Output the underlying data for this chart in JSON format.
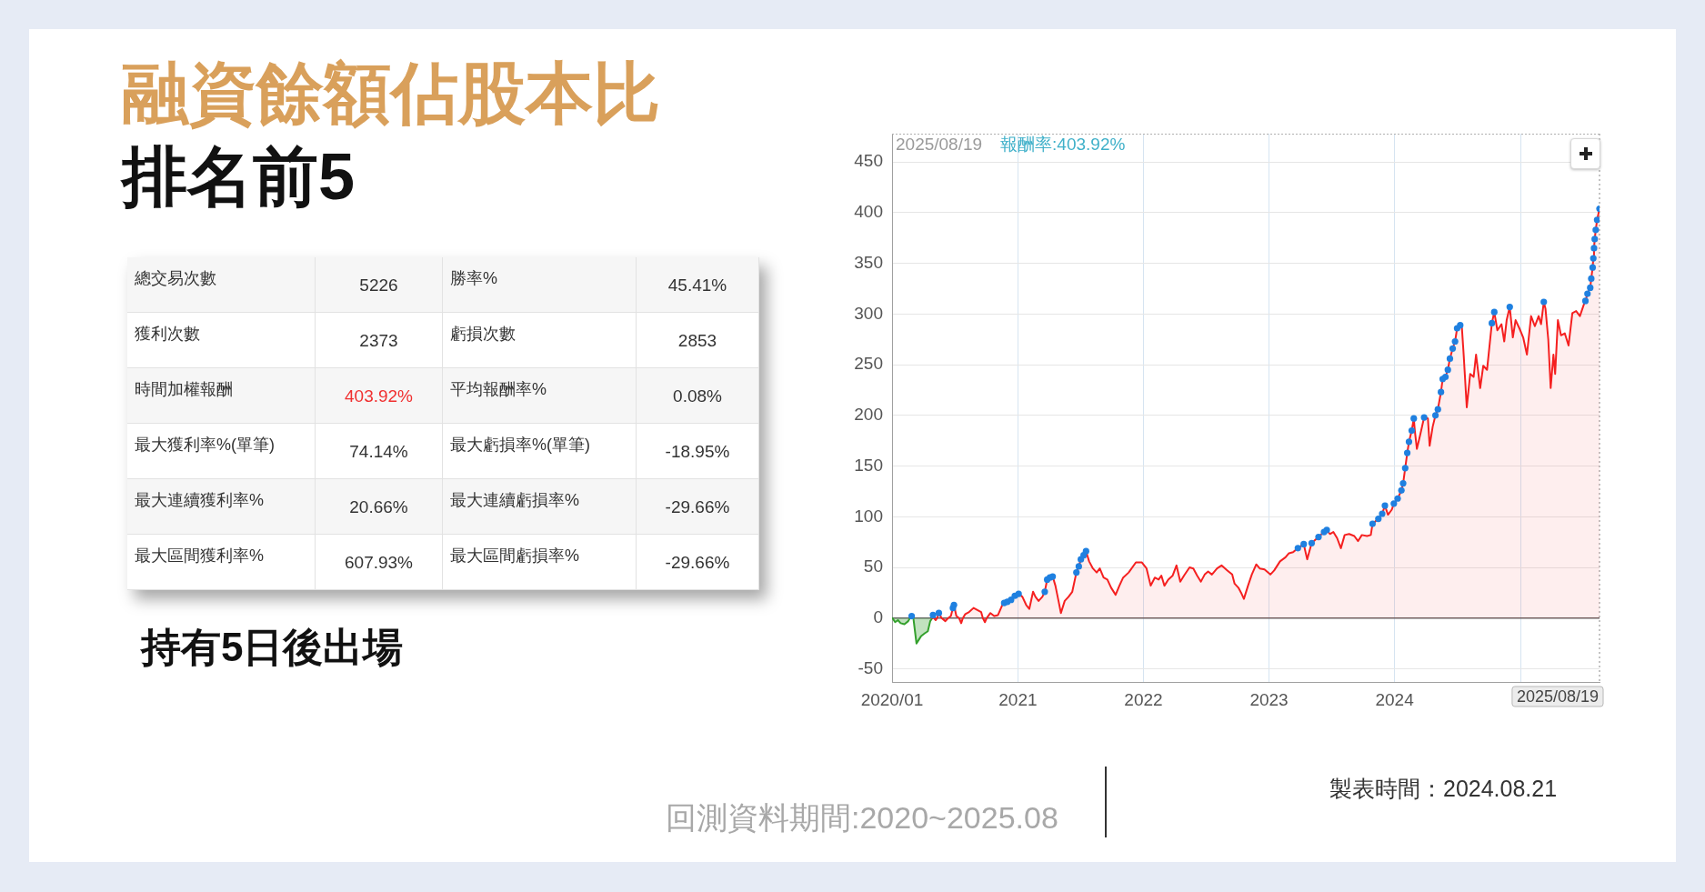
{
  "chart_data": [
    {
      "type": "other",
      "title": "融資餘額佔股本比",
      "subtitle": "排名前5",
      "annotations": [
        "總交易次數",
        "5226",
        "勝率%",
        "45.41%",
        "獲利次數",
        "2373",
        "虧損次數",
        "2853",
        "時間加權報酬",
        "403.92%",
        "平均報酬率%",
        "0.08%",
        "最大獲利率%(單筆)",
        "74.14%",
        "最大虧損率%(單筆)",
        "-18.95%",
        "最大連續獲利率%",
        "20.66%",
        "最大連續虧損率%",
        "-29.66%",
        "最大區間獲利率%",
        "607.93%",
        "最大區間虧損率%",
        "-29.66%",
        "持有5日後出場"
      ]
    },
    {
      "type": "area",
      "xlim": [
        "2020-01-01",
        "2025-08-19"
      ],
      "xticks": [
        {
          "value": "2020-01",
          "label": "2020/01"
        },
        "2021",
        "2022",
        "2023",
        "2024",
        {
          "value": "2025",
          "label": null
        }
      ],
      "ylim": [
        -63,
        478
      ],
      "yticks": [
        -50,
        0,
        50,
        100,
        150,
        200,
        250,
        300,
        350,
        400,
        450
      ],
      "grid": true,
      "legend": false,
      "series": [
        {
          "type": "area",
          "color": "#33a02c",
          "marker": "none",
          "x": [
            "2020-01-02",
            "2020-01-10",
            "2020-01-18",
            "2020-01-26",
            "2020-02-06",
            "2020-02-17",
            "2020-02-22",
            "2020-02-27",
            "2020-03-03",
            "2020-03-12",
            "2020-03-25",
            "2020-04-05",
            "2020-04-14",
            "2020-04-21",
            "2020-04-27"
          ],
          "values": [
            0,
            -4,
            -2,
            -5,
            -6,
            -3,
            0,
            2,
            0,
            -25,
            -18,
            -15,
            -13,
            -3,
            0
          ]
        },
        {
          "type": "area",
          "color": "#f52020",
          "marker": "none",
          "x": [
            "2020-04-27",
            "2020-04-29",
            "2020-05-02",
            "2020-05-07",
            "2020-05-11",
            "2020-05-16",
            "2020-05-24",
            "2020-06-04",
            "2020-06-12",
            "2020-06-20",
            "2020-06-26",
            "2020-06-29",
            "2020-07-06",
            "2020-07-14",
            "2020-07-20",
            "2020-07-25",
            "2020-08-01",
            "2020-08-12",
            "2020-08-25",
            "2020-09-05",
            "2020-09-16",
            "2020-09-21",
            "2020-09-27",
            "2020-10-02",
            "2020-10-13",
            "2020-10-24",
            "2020-11-04",
            "2020-11-18",
            "2020-11-22",
            "2020-12-01",
            "2020-12-12",
            "2020-12-23",
            "2021-01-03",
            "2021-01-14",
            "2021-01-25",
            "2021-02-03",
            "2021-02-14",
            "2021-02-21",
            "2021-03-02",
            "2021-03-13",
            "2021-03-20",
            "2021-03-27",
            "2021-04-04",
            "2021-04-12",
            "2021-04-20",
            "2021-04-29",
            "2021-05-06",
            "2021-05-17",
            "2021-05-28",
            "2021-06-08",
            "2021-06-20",
            "2021-06-27",
            "2021-07-03",
            "2021-07-11",
            "2021-07-18",
            "2021-07-27",
            "2021-08-07",
            "2021-08-18",
            "2021-08-27",
            "2021-09-07",
            "2021-09-18",
            "2021-09-29",
            "2021-10-12",
            "2021-10-23",
            "2021-11-03",
            "2021-11-19",
            "2021-12-10",
            "2021-12-27",
            "2022-01-10",
            "2022-01-22",
            "2022-02-03",
            "2022-02-14",
            "2022-02-22",
            "2022-03-03",
            "2022-03-14",
            "2022-03-27",
            "2022-04-07",
            "2022-04-18",
            "2022-04-29",
            "2022-05-15",
            "2022-05-26",
            "2022-06-06",
            "2022-06-17",
            "2022-06-28",
            "2022-07-08",
            "2022-07-19",
            "2022-08-03",
            "2022-08-16",
            "2022-09-02",
            "2022-09-16",
            "2022-09-23",
            "2022-10-04",
            "2022-10-12",
            "2022-10-20",
            "2022-11-01",
            "2022-11-12",
            "2022-11-25",
            "2022-12-05",
            "2022-12-19",
            "2023-01-05",
            "2023-01-16",
            "2023-02-02",
            "2023-02-18",
            "2023-02-28",
            "2023-03-12",
            "2023-03-26",
            "2023-04-12",
            "2023-04-22",
            "2023-05-05",
            "2023-05-25",
            "2023-06-10",
            "2023-06-18",
            "2023-06-27",
            "2023-07-07",
            "2023-07-18",
            "2023-07-29",
            "2023-08-09",
            "2023-08-22",
            "2023-09-06",
            "2023-09-17",
            "2023-09-28",
            "2023-10-13",
            "2023-10-24",
            "2023-10-29",
            "2023-11-15",
            "2023-11-26",
            "2023-12-04",
            "2023-12-13",
            "2023-12-24",
            "2023-12-30",
            "2024-01-10",
            "2024-01-21",
            "2024-01-26",
            "2024-02-01",
            "2024-02-07",
            "2024-02-12",
            "2024-02-20",
            "2024-02-26",
            "2024-02-29",
            "2024-03-06",
            "2024-03-15",
            "2024-03-27",
            "2024-04-07",
            "2024-04-12",
            "2024-04-21",
            "2024-04-29",
            "2024-05-06",
            "2024-05-15",
            "2024-05-20",
            "2024-05-28",
            "2024-06-04",
            "2024-06-10",
            "2024-06-18",
            "2024-06-25",
            "2024-07-01",
            "2024-07-10",
            "2024-07-15",
            "2024-07-20",
            "2024-07-29",
            "2024-08-08",
            "2024-08-18",
            "2024-08-25",
            "2024-09-06",
            "2024-09-15",
            "2024-09-26",
            "2024-10-10",
            "2024-10-17",
            "2024-10-26",
            "2024-11-07",
            "2024-11-15",
            "2024-11-22",
            "2024-12-01",
            "2024-12-10",
            "2024-12-18",
            "2024-12-29",
            "2025-01-09",
            "2025-01-20",
            "2025-02-01",
            "2025-02-12",
            "2025-02-23",
            "2025-03-02",
            "2025-03-10",
            "2025-03-15",
            "2025-03-23",
            "2025-03-30",
            "2025-04-07",
            "2025-04-12",
            "2025-04-20",
            "2025-04-29",
            "2025-05-10",
            "2025-05-21",
            "2025-06-01",
            "2025-06-12",
            "2025-06-23",
            "2025-07-04",
            "2025-07-09",
            "2025-07-15",
            "2025-07-23",
            "2025-07-26",
            "2025-07-30",
            "2025-08-01",
            "2025-08-03",
            "2025-08-05",
            "2025-08-08",
            "2025-08-12",
            "2025-08-19"
          ],
          "values": [
            0,
            3,
            0,
            -2,
            0,
            5,
            0,
            -3,
            0,
            2,
            10,
            13,
            2,
            0,
            -5,
            0,
            4,
            6,
            10,
            8,
            6,
            0,
            -4,
            0,
            5,
            2,
            3,
            14,
            15,
            16,
            18,
            22,
            24,
            21,
            13,
            9,
            26,
            21,
            17,
            21,
            26,
            38,
            40,
            41,
            32,
            17,
            5,
            17,
            21,
            26,
            45,
            51,
            58,
            62,
            66,
            56,
            49,
            45,
            49,
            40,
            38,
            30,
            23,
            32,
            40,
            45,
            55,
            55,
            49,
            32,
            40,
            38,
            42,
            32,
            38,
            42,
            52,
            36,
            42,
            50,
            49,
            42,
            36,
            43,
            46,
            43,
            49,
            52,
            47,
            43,
            34,
            30,
            25,
            19,
            32,
            43,
            53,
            49,
            48,
            43,
            47,
            56,
            60,
            64,
            65,
            69,
            73,
            58,
            74,
            80,
            85,
            87,
            83,
            85,
            79,
            69,
            82,
            83,
            81,
            76,
            82,
            81,
            82,
            93,
            98,
            103,
            111,
            102,
            107,
            113,
            118,
            126,
            133,
            148,
            163,
            174,
            185,
            197,
            185,
            167,
            180,
            198,
            197,
            170,
            189,
            200,
            206,
            223,
            236,
            238,
            245,
            256,
            266,
            273,
            286,
            289,
            286,
            260,
            208,
            241,
            238,
            260,
            227,
            249,
            245,
            291,
            302,
            284,
            290,
            273,
            294,
            307,
            277,
            294,
            286,
            277,
            260,
            298,
            288,
            298,
            290,
            312,
            305,
            275,
            227,
            260,
            241,
            294,
            279,
            281,
            269,
            301,
            303,
            298,
            309,
            313,
            320,
            326,
            335,
            346,
            355,
            365,
            374,
            383,
            393,
            403.92
          ]
        },
        {
          "type": "scatter",
          "color": "#1f80e0",
          "marker": "circle",
          "x": [
            "2020-02-27",
            "2020-04-29",
            "2020-05-16",
            "2020-06-26",
            "2020-06-29",
            "2020-11-22",
            "2020-12-01",
            "2020-12-12",
            "2020-12-23",
            "2021-01-03",
            "2021-03-20",
            "2021-03-27",
            "2021-04-04",
            "2021-04-12",
            "2021-06-20",
            "2021-06-27",
            "2021-07-03",
            "2021-07-11",
            "2021-07-18",
            "2023-03-26",
            "2023-04-12",
            "2023-05-05",
            "2023-05-25",
            "2023-06-10",
            "2023-06-18",
            "2023-10-29",
            "2023-11-15",
            "2023-11-26",
            "2023-12-04",
            "2023-12-30",
            "2024-01-10",
            "2024-01-21",
            "2024-01-26",
            "2024-02-01",
            "2024-02-07",
            "2024-02-12",
            "2024-02-20",
            "2024-02-26",
            "2024-03-27",
            "2024-04-29",
            "2024-05-06",
            "2024-05-15",
            "2024-05-20",
            "2024-05-28",
            "2024-06-04",
            "2024-06-10",
            "2024-06-18",
            "2024-06-25",
            "2024-07-01",
            "2024-07-10",
            "2024-10-10",
            "2024-10-17",
            "2024-12-01",
            "2025-03-10",
            "2025-07-09",
            "2025-07-15",
            "2025-07-23",
            "2025-07-26",
            "2025-07-30",
            "2025-08-01",
            "2025-08-03",
            "2025-08-05",
            "2025-08-08",
            "2025-08-12",
            "2025-08-19"
          ],
          "values": [
            2,
            3,
            5,
            10,
            13,
            15,
            16,
            18,
            22,
            24,
            26,
            38,
            40,
            41,
            45,
            51,
            58,
            62,
            66,
            69,
            73,
            74,
            80,
            85,
            87,
            93,
            98,
            103,
            111,
            113,
            118,
            126,
            133,
            148,
            163,
            174,
            185,
            197,
            198,
            200,
            206,
            223,
            236,
            238,
            245,
            256,
            266,
            273,
            286,
            289,
            291,
            302,
            307,
            312,
            313,
            320,
            326,
            335,
            346,
            355,
            365,
            374,
            383,
            393,
            403.92
          ]
        }
      ],
      "ref_lines": [
        {
          "axis": "y",
          "value": 0,
          "color": "#666666"
        },
        {
          "axis": "x",
          "value": "2025-08-19",
          "label": "2025/08/19",
          "line_style": "dotted",
          "color": "#888888"
        }
      ],
      "annotations": [
        "2025/08/19",
        "報酬率:403.92%",
        "回測資料期間:2020~2025.08",
        "製表時間：2024.08.21"
      ]
    }
  ]
}
